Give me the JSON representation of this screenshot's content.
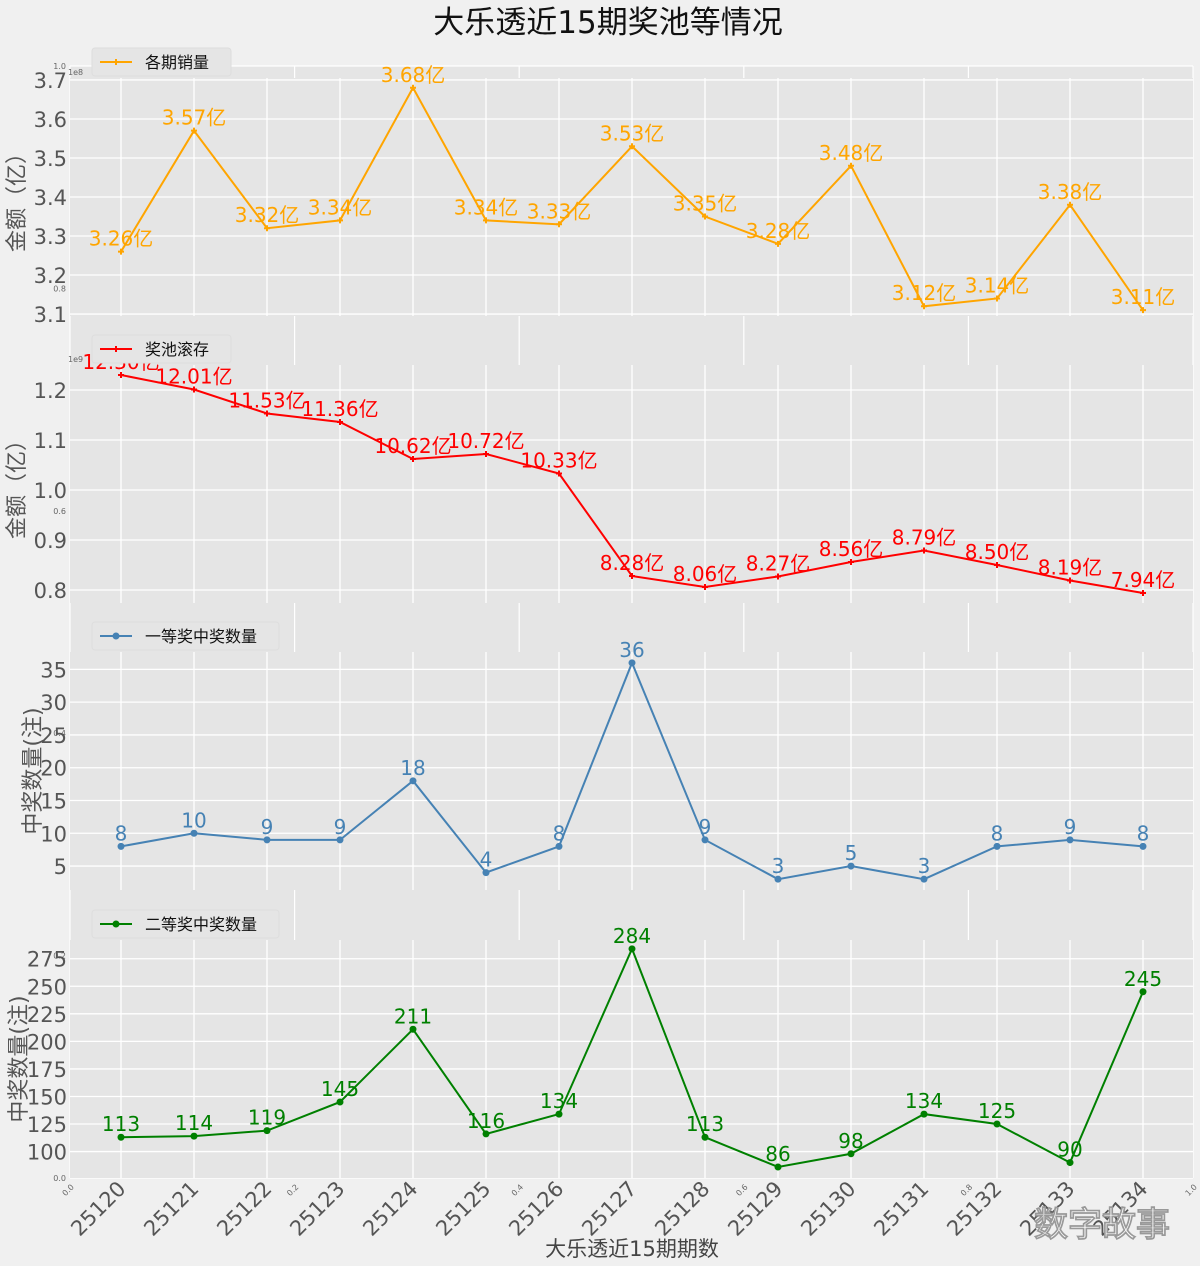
{
  "chart_data": [
    {
      "type": "line",
      "title": "大乐透近15期奖池等情况",
      "xlabel": "大乐透近15期期数",
      "x": [
        "25120",
        "25121",
        "25122",
        "25123",
        "25124",
        "25125",
        "25126",
        "25127",
        "25128",
        "25129",
        "25130",
        "25131",
        "25132",
        "25133",
        "25134"
      ],
      "grid": true,
      "panels": [
        {
          "key": "sales",
          "legend": "各期销量",
          "legend_position": "top-left",
          "ylabel": "金额（亿）",
          "offset_label": "1e8",
          "color": "#FFA500",
          "marker": "plus",
          "ylim": [
            3.095,
            3.705
          ],
          "yticks": [
            3.1,
            3.2,
            3.3,
            3.4,
            3.5,
            3.6,
            3.7
          ],
          "ytick_labels": [
            "3.1",
            "3.2",
            "3.3",
            "3.4",
            "3.5",
            "3.6",
            "3.7"
          ],
          "values": [
            3.26,
            3.57,
            3.32,
            3.34,
            3.68,
            3.34,
            3.33,
            3.53,
            3.35,
            3.28,
            3.48,
            3.12,
            3.14,
            3.38,
            3.11
          ],
          "labels": [
            "3.26亿",
            "3.57亿",
            "3.32亿",
            "3.34亿",
            "3.68亿",
            "3.34亿",
            "3.33亿",
            "3.53亿",
            "3.35亿",
            "3.28亿",
            "3.48亿",
            "3.12亿",
            "3.14亿",
            "3.38亿",
            "3.11亿"
          ]
        },
        {
          "key": "pool",
          "legend": "奖池滚存",
          "legend_position": "top-left",
          "ylabel": "金额（亿）",
          "offset_label": "1e9",
          "color": "#FF0000",
          "marker": "plus",
          "ylim": [
            0.774,
            1.25
          ],
          "yticks": [
            0.8,
            0.9,
            1.0,
            1.1,
            1.2
          ],
          "ytick_labels": [
            "0.8",
            "0.9",
            "1.0",
            "1.1",
            "1.2"
          ],
          "values": [
            1.23,
            1.201,
            1.153,
            1.136,
            1.062,
            1.072,
            1.033,
            0.828,
            0.806,
            0.827,
            0.856,
            0.879,
            0.85,
            0.819,
            0.794
          ],
          "labels": [
            "12.30亿",
            "12.01亿",
            "11.53亿",
            "11.36亿",
            "10.62亿",
            "10.72亿",
            "10.33亿",
            "8.28亿",
            "8.06亿",
            "8.27亿",
            "8.56亿",
            "8.79亿",
            "8.50亿",
            "8.19亿",
            "7.94亿"
          ]
        },
        {
          "key": "first",
          "legend": "一等奖中奖数量",
          "legend_position": "top-left",
          "ylabel": "中奖数量(注)",
          "offset_label": "",
          "color": "#4682B4",
          "marker": "dot",
          "ylim": [
            1.35,
            37.65
          ],
          "yticks": [
            5,
            10,
            15,
            20,
            25,
            30,
            35
          ],
          "ytick_labels": [
            "5",
            "10",
            "15",
            "20",
            "25",
            "30",
            "35"
          ],
          "values": [
            8,
            10,
            9,
            9,
            18,
            4,
            8,
            36,
            9,
            3,
            5,
            3,
            8,
            9,
            8
          ],
          "labels": [
            "8",
            "10",
            "9",
            "9",
            "18",
            "4",
            "8",
            "36",
            "9",
            "3",
            "5",
            "3",
            "8",
            "9",
            "8"
          ]
        },
        {
          "key": "second",
          "legend": "二等奖中奖数量",
          "legend_position": "top-left",
          "ylabel": "中奖数量(注)",
          "offset_label": "",
          "color": "#008000",
          "marker": "dot",
          "ylim": [
            76,
            292
          ],
          "yticks": [
            100,
            125,
            150,
            175,
            200,
            225,
            250,
            275
          ],
          "ytick_labels": [
            "100",
            "125",
            "150",
            "175",
            "200",
            "225",
            "250",
            "275"
          ],
          "values": [
            113,
            114,
            119,
            145,
            211,
            116,
            134,
            284,
            113,
            86,
            98,
            134,
            125,
            90,
            245
          ],
          "labels": [
            "113",
            "114",
            "119",
            "145",
            "211",
            "116",
            "134",
            "284",
            "113",
            "86",
            "98",
            "134",
            "125",
            "90",
            "245"
          ]
        }
      ],
      "background_axis": {
        "tick_labels": [
          "0.0",
          "0.2",
          "0.4",
          "0.6",
          "0.8",
          "1.0"
        ]
      }
    }
  ],
  "watermark": "数字故事"
}
